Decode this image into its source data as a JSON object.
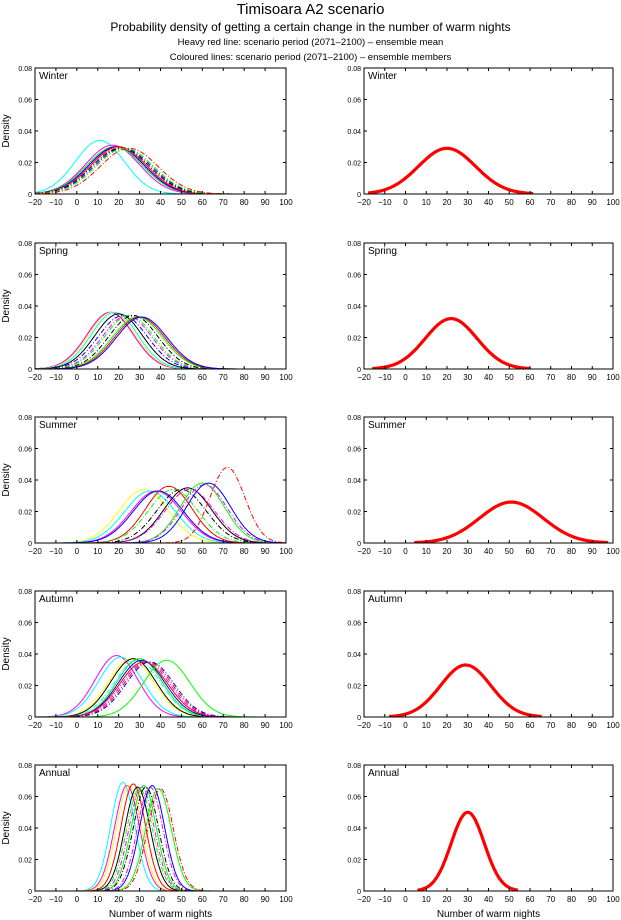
{
  "header": {
    "title": "Timisoara A2 scenario",
    "subtitle": "Probability density of getting a certain change in the number of warm nights",
    "note1": "Heavy red line: scenario period (2071–2100) – ensemble mean",
    "note2": "Coloured lines: scenario period (2071–2100) – ensemble members"
  },
  "chart_data": {
    "type": "line",
    "xlabel": "Number of warm nights",
    "ylabel": "Density",
    "xlim": [
      -20,
      100
    ],
    "ylim": [
      0,
      0.08
    ],
    "xticks": [
      "−20",
      "−10",
      "0",
      "10",
      "20",
      "30",
      "40",
      "50",
      "60",
      "70",
      "80",
      "90",
      "100"
    ],
    "xtick_values": [
      -20,
      -10,
      0,
      10,
      20,
      30,
      40,
      50,
      60,
      70,
      80,
      90,
      100
    ],
    "yticks": [
      "0",
      "0.02",
      "0.04",
      "0.06",
      "0.08"
    ],
    "ytick_values": [
      0,
      0.02,
      0.04,
      0.06,
      0.08
    ],
    "grid": false,
    "mean_color": "#ff0000",
    "member_colors": [
      "#00ffff",
      "#ff00ff",
      "#ffff00",
      "#ff0000",
      "#000000",
      "#0000ff",
      "#00ff00"
    ],
    "panels": [
      {
        "label": "Winter",
        "mean": {
          "mu": 20,
          "peak": 0.029
        },
        "members": [
          {
            "mu": 11,
            "peak": 0.034,
            "color": "#00ffff",
            "style": "solid"
          },
          {
            "mu": 17,
            "peak": 0.031,
            "color": "#ff00ff",
            "style": "solid"
          },
          {
            "mu": 18,
            "peak": 0.03,
            "color": "#00ff00",
            "style": "solid"
          },
          {
            "mu": 19,
            "peak": 0.03,
            "color": "#000000",
            "style": "solid"
          },
          {
            "mu": 19,
            "peak": 0.03,
            "color": "#0000ff",
            "style": "solid"
          },
          {
            "mu": 20,
            "peak": 0.03,
            "color": "#ff0000",
            "style": "solid"
          },
          {
            "mu": 21,
            "peak": 0.029,
            "color": "#ffff00",
            "style": "solid"
          },
          {
            "mu": 20,
            "peak": 0.029,
            "color": "#ff00ff",
            "style": "dashdot"
          },
          {
            "mu": 21,
            "peak": 0.029,
            "color": "#000000",
            "style": "dashdot"
          },
          {
            "mu": 22,
            "peak": 0.029,
            "color": "#0000ff",
            "style": "dashdot"
          },
          {
            "mu": 23,
            "peak": 0.029,
            "color": "#00ff00",
            "style": "dashdot"
          },
          {
            "mu": 25,
            "peak": 0.029,
            "color": "#ff0000",
            "style": "dashdot"
          }
        ]
      },
      {
        "label": "Spring",
        "mean": {
          "mu": 22,
          "peak": 0.032
        },
        "members": [
          {
            "mu": 16,
            "peak": 0.036,
            "color": "#ff0000",
            "style": "solid"
          },
          {
            "mu": 16,
            "peak": 0.036,
            "color": "#ff00ff",
            "style": "solid"
          },
          {
            "mu": 17,
            "peak": 0.036,
            "color": "#ffff00",
            "style": "solid"
          },
          {
            "mu": 18,
            "peak": 0.036,
            "color": "#00ffff",
            "style": "solid"
          },
          {
            "mu": 20,
            "peak": 0.035,
            "color": "#000000",
            "style": "solid"
          },
          {
            "mu": 22,
            "peak": 0.034,
            "color": "#0000ff",
            "style": "dashdot"
          },
          {
            "mu": 24,
            "peak": 0.034,
            "color": "#ff00ff",
            "style": "dashdot"
          },
          {
            "mu": 25,
            "peak": 0.034,
            "color": "#00ff00",
            "style": "dashdot"
          },
          {
            "mu": 27,
            "peak": 0.034,
            "color": "#000000",
            "style": "dashdot"
          },
          {
            "mu": 29,
            "peak": 0.033,
            "color": "#00ff00",
            "style": "solid"
          },
          {
            "mu": 30,
            "peak": 0.033,
            "color": "#ff0000",
            "style": "solid"
          },
          {
            "mu": 31,
            "peak": 0.033,
            "color": "#0000ff",
            "style": "solid"
          }
        ]
      },
      {
        "label": "Summer",
        "mean": {
          "mu": 51,
          "peak": 0.026
        },
        "members": [
          {
            "mu": 32,
            "peak": 0.034,
            "color": "#ffff00",
            "style": "solid"
          },
          {
            "mu": 35,
            "peak": 0.033,
            "color": "#00ffff",
            "style": "solid"
          },
          {
            "mu": 38,
            "peak": 0.033,
            "color": "#ff00ff",
            "style": "solid"
          },
          {
            "mu": 39,
            "peak": 0.033,
            "color": "#0000ff",
            "style": "solid"
          },
          {
            "mu": 44,
            "peak": 0.036,
            "color": "#ff0000",
            "style": "solid"
          },
          {
            "mu": 46,
            "peak": 0.034,
            "color": "#00ff00",
            "style": "dashdot"
          },
          {
            "mu": 50,
            "peak": 0.034,
            "color": "#000000",
            "style": "dashdot"
          },
          {
            "mu": 53,
            "peak": 0.035,
            "color": "#000000",
            "style": "solid"
          },
          {
            "mu": 54,
            "peak": 0.034,
            "color": "#ff00ff",
            "style": "dashdot"
          },
          {
            "mu": 60,
            "peak": 0.038,
            "color": "#00ff00",
            "style": "solid"
          },
          {
            "mu": 61,
            "peak": 0.037,
            "color": "#ff00ff",
            "style": "dashdot"
          },
          {
            "mu": 63,
            "peak": 0.038,
            "color": "#0000ff",
            "style": "solid"
          },
          {
            "mu": 72,
            "peak": 0.048,
            "color": "#ff0000",
            "style": "dashdot"
          }
        ]
      },
      {
        "label": "Autumn",
        "mean": {
          "mu": 29,
          "peak": 0.033
        },
        "members": [
          {
            "mu": 19,
            "peak": 0.039,
            "color": "#ff00ff",
            "style": "solid"
          },
          {
            "mu": 21,
            "peak": 0.038,
            "color": "#00ffff",
            "style": "solid"
          },
          {
            "mu": 26,
            "peak": 0.037,
            "color": "#ffff00",
            "style": "solid"
          },
          {
            "mu": 27,
            "peak": 0.037,
            "color": "#000000",
            "style": "solid"
          },
          {
            "mu": 29,
            "peak": 0.036,
            "color": "#00ffff",
            "style": "dashdot"
          },
          {
            "mu": 30,
            "peak": 0.037,
            "color": "#00ff00",
            "style": "solid"
          },
          {
            "mu": 31,
            "peak": 0.036,
            "color": "#0000ff",
            "style": "solid"
          },
          {
            "mu": 32,
            "peak": 0.035,
            "color": "#ff0000",
            "style": "solid"
          },
          {
            "mu": 33,
            "peak": 0.035,
            "color": "#ff00ff",
            "style": "dashdot"
          },
          {
            "mu": 34,
            "peak": 0.035,
            "color": "#ff0000",
            "style": "dashdot"
          },
          {
            "mu": 35,
            "peak": 0.035,
            "color": "#0000ff",
            "style": "dashdot"
          },
          {
            "mu": 43,
            "peak": 0.036,
            "color": "#00ff00",
            "style": "solid"
          }
        ]
      },
      {
        "label": "Annual",
        "mean": {
          "mu": 30,
          "peak": 0.05
        },
        "members": [
          {
            "mu": 22,
            "peak": 0.069,
            "color": "#00ffff",
            "style": "solid"
          },
          {
            "mu": 24,
            "peak": 0.067,
            "color": "#ff00ff",
            "style": "solid"
          },
          {
            "mu": 25,
            "peak": 0.067,
            "color": "#ffff00",
            "style": "solid"
          },
          {
            "mu": 27,
            "peak": 0.068,
            "color": "#ff0000",
            "style": "solid"
          },
          {
            "mu": 29,
            "peak": 0.066,
            "color": "#000000",
            "style": "solid"
          },
          {
            "mu": 30,
            "peak": 0.065,
            "color": "#00ff00",
            "style": "dashdot"
          },
          {
            "mu": 31,
            "peak": 0.066,
            "color": "#ff00ff",
            "style": "dashdot"
          },
          {
            "mu": 32,
            "peak": 0.067,
            "color": "#00ff00",
            "style": "solid"
          },
          {
            "mu": 33,
            "peak": 0.066,
            "color": "#000000",
            "style": "dashdot"
          },
          {
            "mu": 35,
            "peak": 0.066,
            "color": "#ff00ff",
            "style": "dashdot"
          },
          {
            "mu": 36,
            "peak": 0.067,
            "color": "#0000ff",
            "style": "solid"
          },
          {
            "mu": 39,
            "peak": 0.065,
            "color": "#00ff00",
            "style": "solid"
          },
          {
            "mu": 40,
            "peak": 0.065,
            "color": "#ff0000",
            "style": "dashdot"
          }
        ]
      }
    ]
  }
}
